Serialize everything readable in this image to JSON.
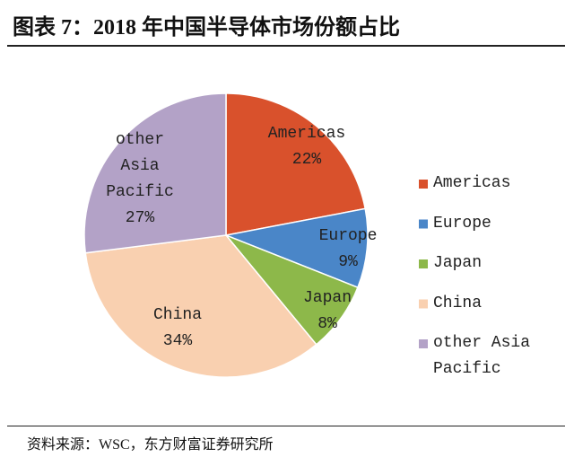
{
  "chart_data": {
    "type": "pie",
    "title": "图表 7：2018 年中国半导体市场份额占比",
    "source": "资料来源：WSC，东方财富证券研究所",
    "categories": [
      "Americas",
      "Europe",
      "Japan",
      "China",
      "other Asia Pacific"
    ],
    "values": [
      22,
      9,
      8,
      34,
      27
    ],
    "value_labels": [
      "22%",
      "9%",
      "8%",
      "34%",
      "27%"
    ],
    "colors": [
      "#d9512c",
      "#4a86c8",
      "#8db84a",
      "#f9d0b0",
      "#b3a2c7"
    ]
  }
}
